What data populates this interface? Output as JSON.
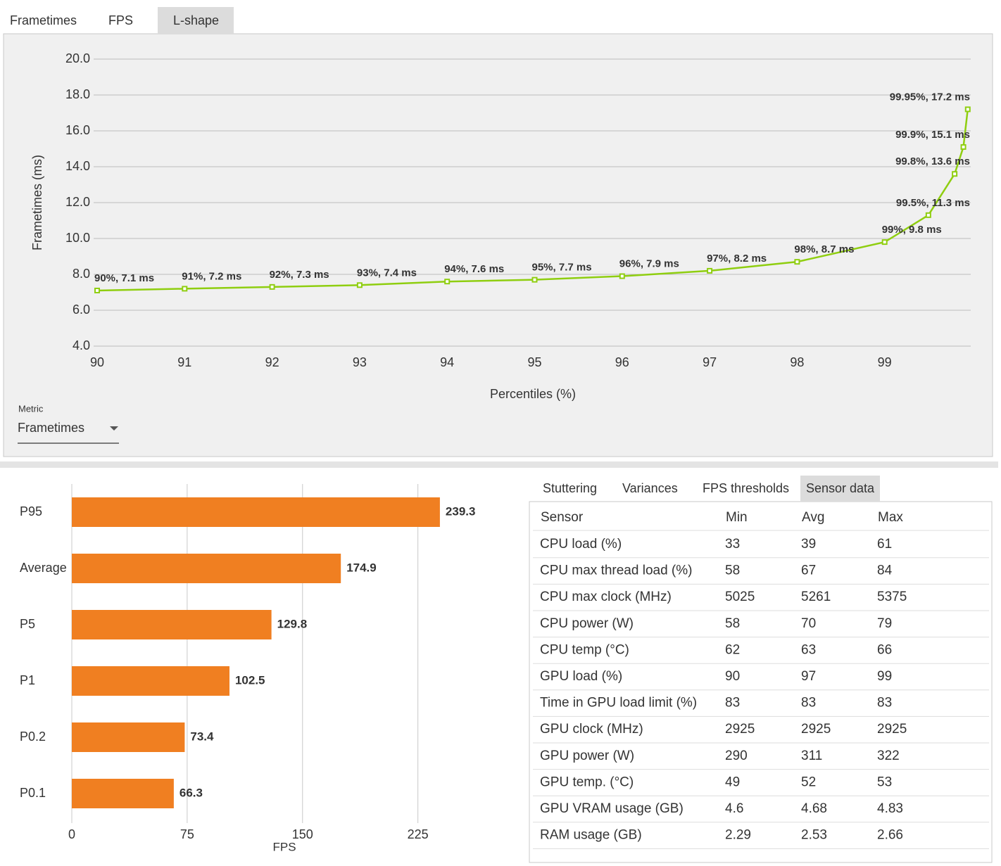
{
  "tabs": [
    "Frametimes",
    "FPS",
    "L-shape"
  ],
  "active_tab": 2,
  "chart_data": [
    {
      "type": "line",
      "xlabel": "Percentiles (%)",
      "ylabel": "Frametimes (ms)",
      "x": [
        90,
        91,
        92,
        93,
        94,
        95,
        96,
        97,
        98,
        99,
        99.5,
        99.8,
        99.9,
        99.95
      ],
      "values": [
        7.1,
        7.2,
        7.3,
        7.4,
        7.6,
        7.7,
        7.9,
        8.2,
        8.7,
        9.8,
        11.3,
        13.6,
        15.1,
        17.2
      ],
      "value_labels": [
        "90%, 7.1 ms",
        "91%, 7.2 ms",
        "92%, 7.3 ms",
        "93%, 7.4 ms",
        "94%, 7.6 ms",
        "95%, 7.7 ms",
        "96%, 7.9 ms",
        "97%, 8.2 ms",
        "98%, 8.7 ms",
        "99%, 9.8 ms",
        "99.5%, 11.3 ms",
        "99.8%, 13.6 ms",
        "99.9%, 15.1 ms",
        "99.95%, 17.2 ms"
      ],
      "color": "#8fce10",
      "xlim": [
        90,
        100
      ],
      "xticks": [
        90,
        91,
        92,
        93,
        94,
        95,
        96,
        97,
        98,
        99
      ],
      "ylim": [
        4,
        20
      ],
      "yticks": [
        {
          "value": 4,
          "label": "4.0"
        },
        {
          "value": 6,
          "label": "6.0"
        },
        {
          "value": 8,
          "label": "8.0"
        },
        {
          "value": 10,
          "label": "10.0"
        },
        {
          "value": 12,
          "label": "12.0"
        },
        {
          "value": 14,
          "label": "14.0"
        },
        {
          "value": 16,
          "label": "16.0"
        },
        {
          "value": 18,
          "label": "18.0"
        },
        {
          "value": 20,
          "label": "20.0"
        }
      ],
      "grid": true
    },
    {
      "type": "bar",
      "orientation": "horizontal",
      "xlabel": "FPS",
      "categories": [
        "P95",
        "Average",
        "P5",
        "P1",
        "P0.2",
        "P0.1"
      ],
      "values": [
        239.3,
        174.9,
        129.8,
        102.5,
        73.4,
        66.3
      ],
      "color": "#f07f21",
      "xlim": [
        0,
        270
      ],
      "xticks": [
        0,
        75,
        150,
        225
      ],
      "grid": true
    }
  ],
  "metric": {
    "label": "Metric",
    "value": "Frametimes"
  },
  "subtabs": [
    "Stuttering",
    "Variances",
    "FPS thresholds",
    "Sensor data"
  ],
  "active_subtab": 3,
  "table": {
    "columns": [
      "Sensor",
      "Min",
      "Avg",
      "Max"
    ],
    "rows": [
      [
        "CPU load (%)",
        33,
        39,
        61
      ],
      [
        "CPU max thread load (%)",
        58,
        67,
        84
      ],
      [
        "CPU max clock (MHz)",
        5025,
        5261,
        5375
      ],
      [
        "CPU power (W)",
        58,
        70,
        79
      ],
      [
        "CPU temp (°C)",
        62,
        63,
        66
      ],
      [
        "GPU load (%)",
        90,
        97,
        99
      ],
      [
        "Time in GPU load limit (%)",
        83,
        83,
        83
      ],
      [
        "GPU clock (MHz)",
        2925,
        2925,
        2925
      ],
      [
        "GPU power (W)",
        290,
        311,
        322
      ],
      [
        "GPU temp. (°C)",
        49,
        52,
        53
      ],
      [
        "GPU VRAM usage (GB)",
        4.6,
        4.68,
        4.83
      ],
      [
        "RAM usage (GB)",
        2.29,
        2.53,
        2.66
      ]
    ]
  }
}
